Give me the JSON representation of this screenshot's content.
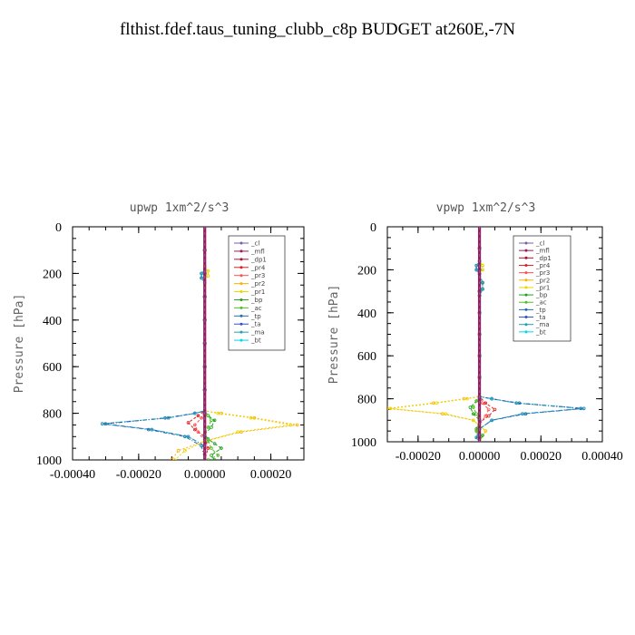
{
  "title": "flthist.fdef.taus_tuning_clubb_c8p  BUDGET at260E,-7N",
  "legend_entries": [
    "_cl",
    "_mfl",
    "_dp1",
    "_pr4",
    "_pr3",
    "_pr2",
    "_pr1",
    "_bp",
    "_ac",
    "_tp",
    "_ta",
    "_ma",
    "_bt"
  ],
  "series_colors": {
    "_cl": "#7b5ea7",
    "_mfl": "#9b1b5a",
    "_dp1": "#b01030",
    "_pr4": "#e02020",
    "_pr3": "#ff5050",
    "_pr2": "#ffb000",
    "_pr1": "#e8d800",
    "_bp": "#20a020",
    "_ac": "#50c020",
    "_tp": "#1f6fb0",
    "_ta": "#3050d0",
    "_ma": "#20a0b0",
    "_bt": "#00d8e8"
  },
  "chart_data": [
    {
      "type": "line",
      "title": "upwp   1xm^2/s^3",
      "ylabel": "Pressure [hPa]",
      "xlim": [
        -0.0004,
        0.0003
      ],
      "ylim": [
        1000,
        0
      ],
      "xticks": [
        "-0.00040",
        "-0.00020",
        "0.00000",
        "0.00020"
      ],
      "yticks": [
        "0",
        "200",
        "400",
        "600",
        "800",
        "1000"
      ],
      "legend_position": "top-right",
      "series": [
        {
          "name": "_cl",
          "x": [
            0,
            0,
            0,
            0,
            0,
            0,
            0,
            0,
            0,
            0,
            0
          ],
          "y": [
            0,
            100,
            200,
            300,
            400,
            500,
            600,
            700,
            800,
            900,
            1000
          ]
        },
        {
          "name": "_mfl",
          "x": [
            0,
            0,
            0,
            0,
            0,
            0,
            0,
            0,
            0,
            0,
            0
          ],
          "y": [
            0,
            100,
            200,
            300,
            400,
            500,
            600,
            700,
            800,
            900,
            1000
          ]
        },
        {
          "name": "_dp1",
          "x": [
            0,
            0,
            0,
            0,
            0,
            0,
            0,
            0,
            0,
            0,
            0
          ],
          "y": [
            0,
            100,
            200,
            300,
            400,
            500,
            600,
            700,
            800,
            900,
            1000
          ]
        },
        {
          "name": "_pr4",
          "x": [
            0,
            0,
            -2e-05,
            -5e-05,
            -3e-05,
            0,
            1e-05,
            0
          ],
          "y": [
            0,
            790,
            810,
            840,
            870,
            900,
            950,
            1000
          ]
        },
        {
          "name": "_pr3",
          "x": [
            0,
            0,
            -1e-05,
            -3e-05,
            -2e-05,
            0,
            0
          ],
          "y": [
            0,
            790,
            820,
            850,
            880,
            920,
            1000
          ]
        },
        {
          "name": "_pr2",
          "x": [
            0,
            0,
            1e-05,
            1e-05,
            0,
            0,
            5e-05,
            0.00015,
            0.00028,
            0.00011,
            0,
            -8e-05,
            -0.0001
          ],
          "y": [
            0,
            170,
            190,
            210,
            230,
            790,
            800,
            820,
            850,
            880,
            920,
            960,
            1000
          ]
        },
        {
          "name": "_pr1",
          "x": [
            0,
            0,
            1e-05,
            1e-05,
            0,
            0,
            4e-05,
            0.00014,
            0.00026,
            0.0001,
            0,
            -6e-05,
            -9e-05
          ],
          "y": [
            0,
            170,
            190,
            210,
            230,
            790,
            800,
            820,
            850,
            880,
            920,
            960,
            1000
          ]
        },
        {
          "name": "_bp",
          "x": [
            0,
            0,
            1e-05,
            3e-05,
            2e-05,
            0,
            1e-05,
            3e-05,
            5e-05,
            2e-05,
            3e-05
          ],
          "y": [
            0,
            790,
            810,
            830,
            860,
            890,
            910,
            930,
            950,
            980,
            1000
          ]
        },
        {
          "name": "_ac",
          "x": [
            0,
            0,
            1e-05,
            2e-05,
            1e-05,
            0,
            1e-05,
            2e-05,
            4e-05,
            1e-05
          ],
          "y": [
            0,
            790,
            810,
            830,
            860,
            890,
            920,
            950,
            980,
            1000
          ]
        },
        {
          "name": "_tp",
          "x": [
            0,
            0,
            -1e-05,
            -1e-05,
            0,
            0,
            -3e-05,
            -0.00012,
            -0.00031,
            -0.00017,
            -6e-05,
            -1e-05,
            0
          ],
          "y": [
            0,
            180,
            200,
            220,
            240,
            790,
            800,
            820,
            845,
            870,
            900,
            940,
            1000
          ]
        },
        {
          "name": "_ta",
          "x": [
            0,
            0,
            -1e-05,
            -1e-05,
            0,
            0,
            -3e-05,
            -0.00011,
            -0.0003,
            -0.00016,
            -5e-05,
            0,
            0
          ],
          "y": [
            0,
            180,
            200,
            220,
            240,
            790,
            800,
            820,
            845,
            870,
            900,
            940,
            1000
          ]
        },
        {
          "name": "_ma",
          "x": [
            0,
            0,
            -1e-05,
            -1e-05,
            0,
            0,
            -3e-05,
            -0.00011,
            -0.00031,
            -0.00016,
            -5e-05,
            0,
            0
          ],
          "y": [
            0,
            180,
            200,
            220,
            240,
            790,
            800,
            820,
            845,
            870,
            900,
            940,
            1000
          ]
        },
        {
          "name": "_bt",
          "x": [
            0,
            0,
            0,
            0,
            0,
            0,
            0,
            0,
            0,
            0,
            0
          ],
          "y": [
            0,
            100,
            200,
            300,
            400,
            500,
            600,
            700,
            800,
            900,
            1000
          ]
        }
      ]
    },
    {
      "type": "line",
      "title": "vpwp   1xm^2/s^3",
      "ylabel": "Pressure [hPa]",
      "xlim": [
        -0.0003,
        0.0004
      ],
      "ylim": [
        1000,
        0
      ],
      "xticks": [
        "-0.00020",
        "0.00000",
        "0.00020",
        "0.00040"
      ],
      "yticks": [
        "0",
        "200",
        "400",
        "600",
        "800",
        "1000"
      ],
      "legend_position": "top-right",
      "series": [
        {
          "name": "_cl",
          "x": [
            0,
            0,
            0,
            0,
            0,
            0,
            0,
            0,
            0,
            0,
            0
          ],
          "y": [
            0,
            100,
            200,
            300,
            400,
            500,
            600,
            700,
            800,
            900,
            1000
          ]
        },
        {
          "name": "_mfl",
          "x": [
            0,
            0,
            0,
            0,
            0,
            0,
            0,
            0,
            0,
            0,
            0
          ],
          "y": [
            0,
            100,
            200,
            300,
            400,
            500,
            600,
            700,
            800,
            900,
            1000
          ]
        },
        {
          "name": "_dp1",
          "x": [
            0,
            0,
            0,
            0,
            0,
            0,
            0,
            0,
            0,
            0,
            0
          ],
          "y": [
            0,
            100,
            200,
            300,
            400,
            500,
            600,
            700,
            800,
            900,
            1000
          ]
        },
        {
          "name": "_pr4",
          "x": [
            0,
            0,
            2e-05,
            5e-05,
            3e-05,
            0,
            -1e-05,
            0
          ],
          "y": [
            0,
            790,
            820,
            850,
            880,
            910,
            950,
            1000
          ]
        },
        {
          "name": "_pr3",
          "x": [
            0,
            0,
            1e-05,
            3e-05,
            2e-05,
            0,
            0
          ],
          "y": [
            0,
            790,
            820,
            850,
            880,
            920,
            1000
          ]
        },
        {
          "name": "_pr2",
          "x": [
            0,
            0,
            1e-05,
            1e-05,
            0,
            1e-05,
            1e-05,
            0,
            0,
            -5e-05,
            -0.00015,
            -0.0003,
            -0.00012,
            -2e-05,
            2e-05,
            0
          ],
          "y": [
            0,
            160,
            180,
            200,
            220,
            260,
            290,
            320,
            790,
            800,
            820,
            845,
            870,
            900,
            950,
            1000
          ]
        },
        {
          "name": "_pr1",
          "x": [
            0,
            0,
            1e-05,
            1e-05,
            0,
            1e-05,
            1e-05,
            0,
            0,
            -4e-05,
            -0.00014,
            -0.00029,
            -0.00011,
            -2e-05,
            2e-05,
            0
          ],
          "y": [
            0,
            160,
            180,
            200,
            220,
            260,
            290,
            320,
            790,
            800,
            820,
            845,
            870,
            900,
            950,
            1000
          ]
        },
        {
          "name": "_bp",
          "x": [
            0,
            0,
            -1e-05,
            -3e-05,
            -2e-05,
            0,
            -1e-05,
            1e-05,
            0
          ],
          "y": [
            0,
            790,
            810,
            840,
            870,
            900,
            940,
            970,
            1000
          ]
        },
        {
          "name": "_ac",
          "x": [
            0,
            0,
            -1e-05,
            -2e-05,
            -1e-05,
            0,
            -1e-05,
            0
          ],
          "y": [
            0,
            790,
            810,
            840,
            870,
            900,
            950,
            1000
          ]
        },
        {
          "name": "_tp",
          "x": [
            0,
            0,
            -1e-05,
            -1e-05,
            0,
            1e-05,
            1e-05,
            0,
            0,
            4e-05,
            0.00013,
            0.00034,
            0.00015,
            4e-05,
            0,
            -1e-05,
            0
          ],
          "y": [
            0,
            160,
            180,
            200,
            220,
            260,
            290,
            320,
            790,
            800,
            820,
            845,
            870,
            900,
            940,
            980,
            1000
          ]
        },
        {
          "name": "_ta",
          "x": [
            0,
            0,
            -1e-05,
            -1e-05,
            0,
            1e-05,
            1e-05,
            0,
            0,
            4e-05,
            0.00012,
            0.00033,
            0.00014,
            4e-05,
            0,
            -1e-05,
            0
          ],
          "y": [
            0,
            160,
            180,
            200,
            220,
            260,
            290,
            320,
            790,
            800,
            820,
            845,
            870,
            900,
            940,
            980,
            1000
          ]
        },
        {
          "name": "_ma",
          "x": [
            0,
            0,
            -1e-05,
            -1e-05,
            0,
            1e-05,
            1e-05,
            0,
            0,
            4e-05,
            0.00012,
            0.00034,
            0.00014,
            4e-05,
            0,
            -1e-05,
            0
          ],
          "y": [
            0,
            160,
            180,
            200,
            220,
            260,
            290,
            320,
            790,
            800,
            820,
            845,
            870,
            900,
            940,
            980,
            1000
          ]
        },
        {
          "name": "_bt",
          "x": [
            0,
            0,
            0,
            0,
            0,
            0,
            0,
            0,
            0,
            0,
            0
          ],
          "y": [
            0,
            100,
            200,
            300,
            400,
            500,
            600,
            700,
            800,
            900,
            1000
          ]
        }
      ]
    }
  ]
}
